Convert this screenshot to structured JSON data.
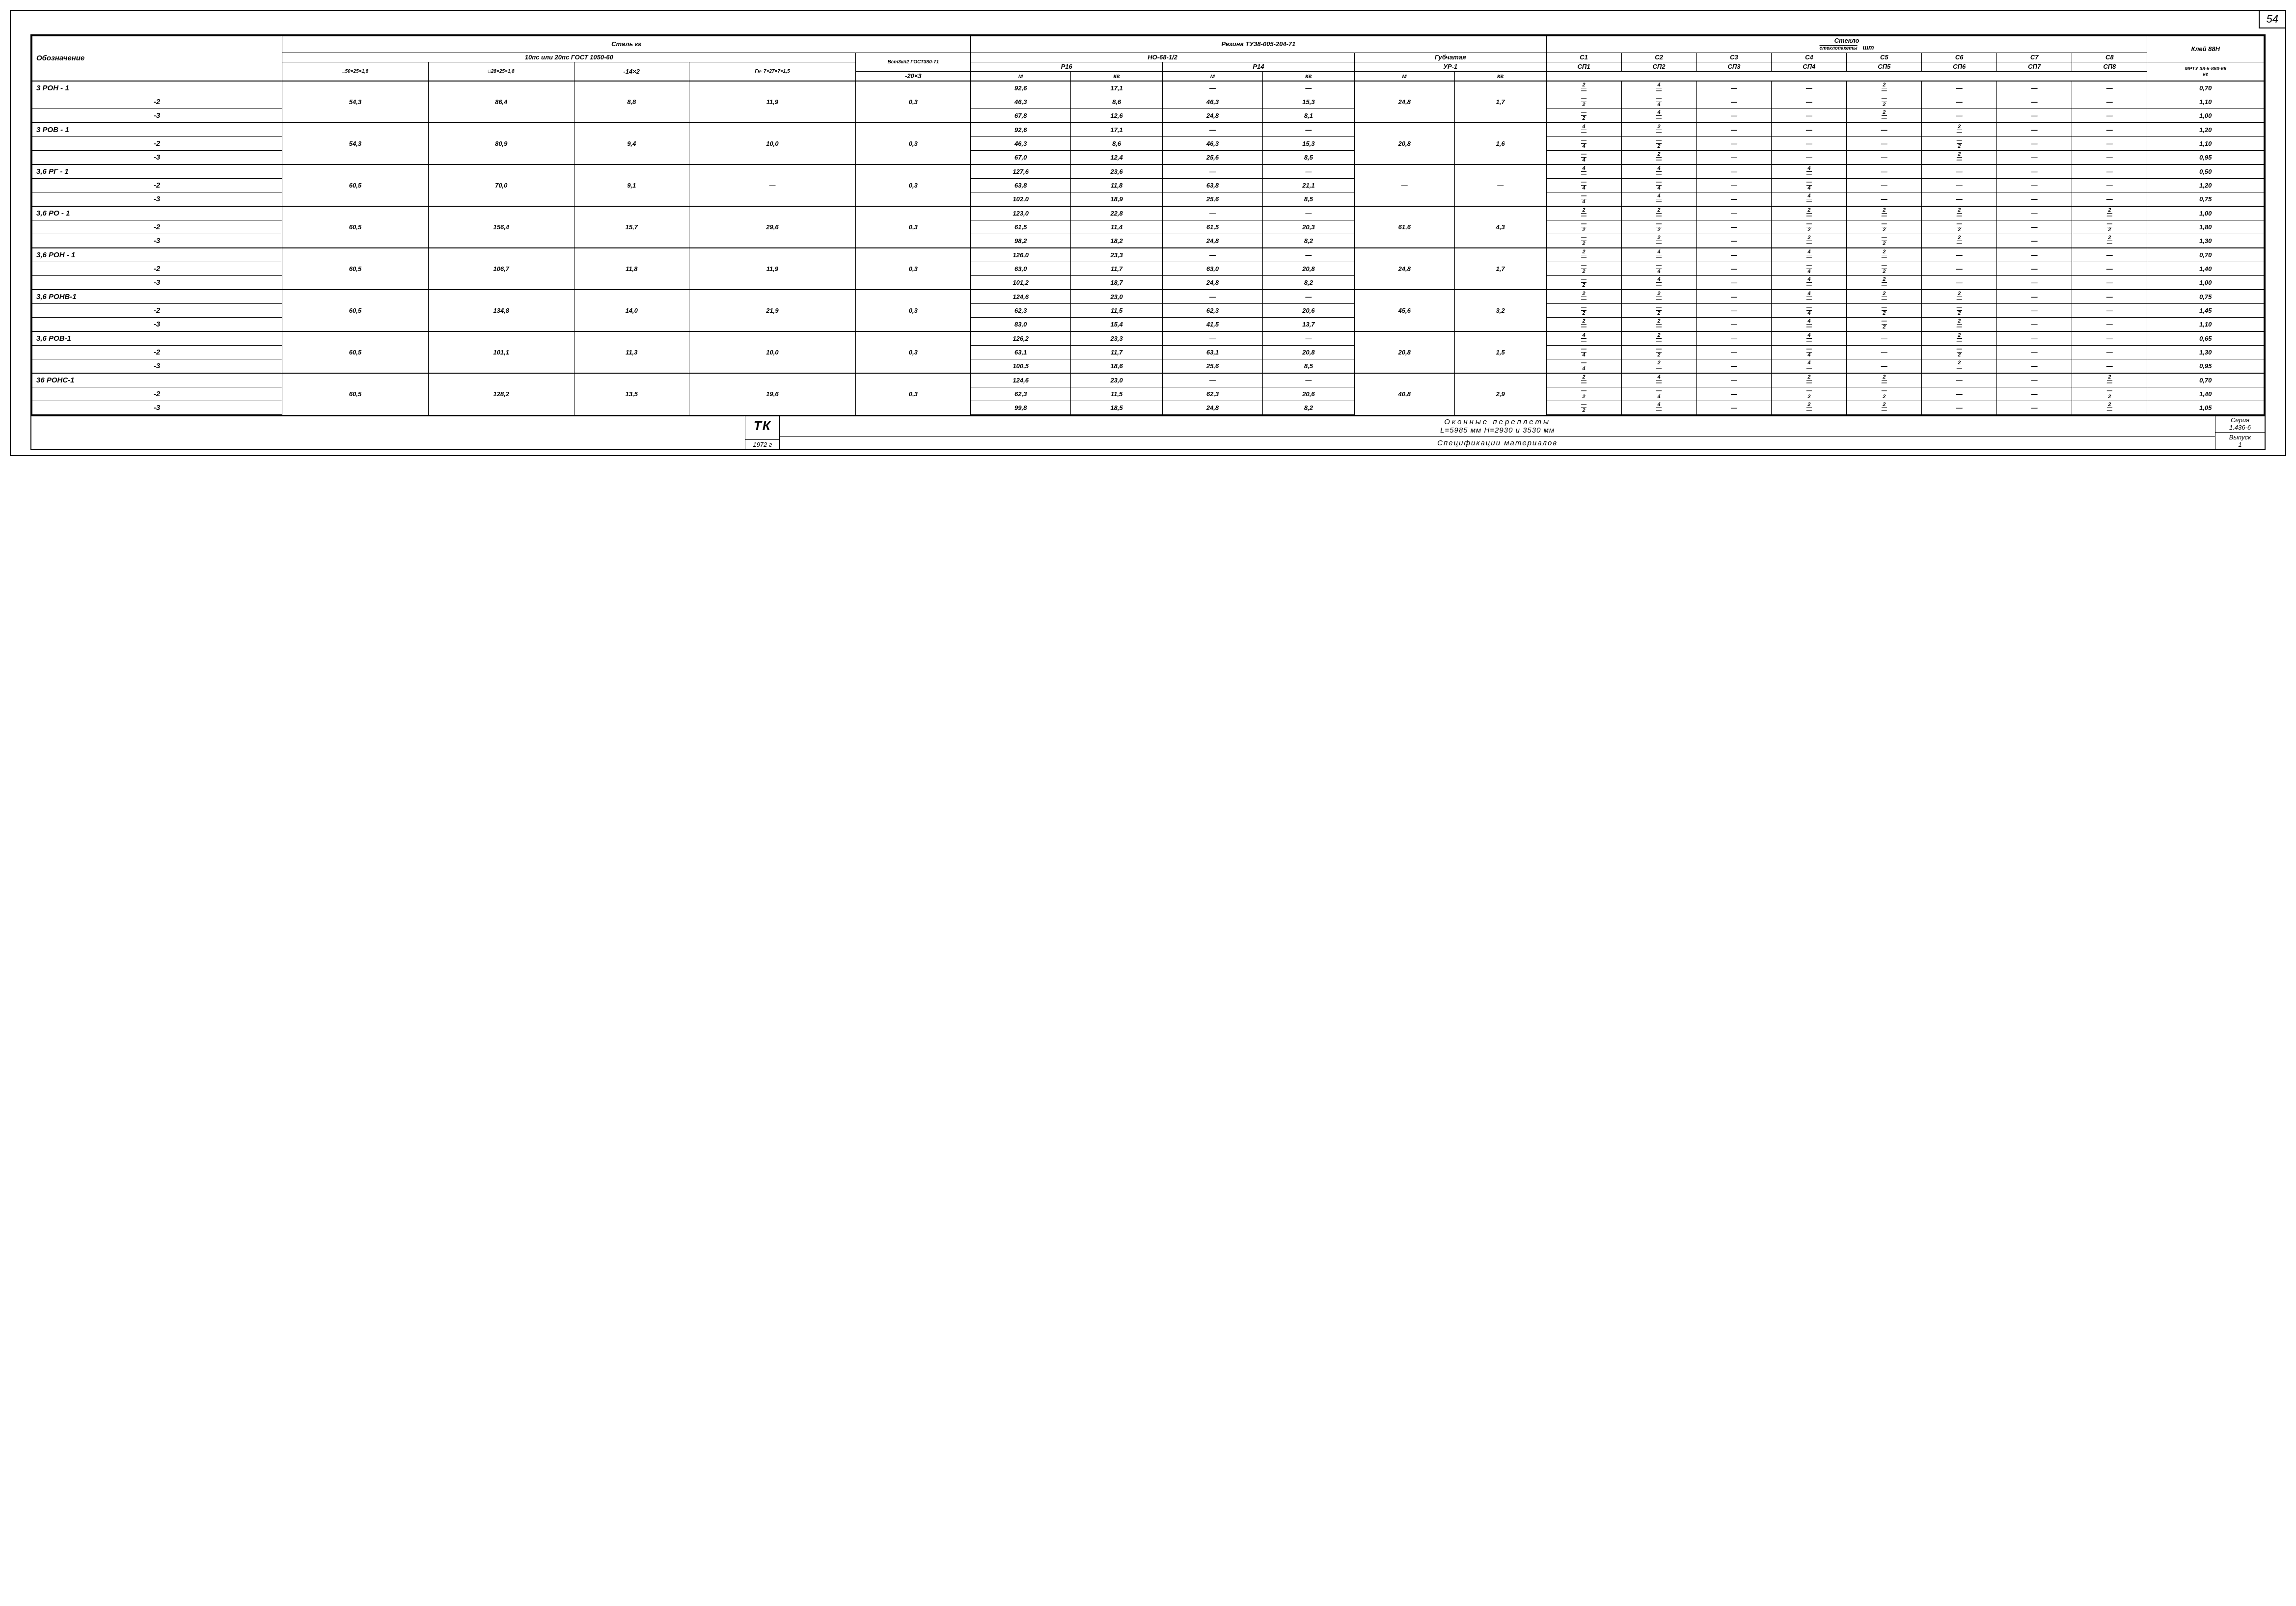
{
  "page_number": "54",
  "headers": {
    "obozn": "Обозначение",
    "steel": "Сталь   кг",
    "steel_sub": "10пс или 20пс ГОСТ 1050-60",
    "steel_extra": "Вст3кп2 ГОСТ380-71",
    "steel_cols": [
      "□50×25×1,8",
      "□28×25×1,8",
      "-14×2",
      "Гн⌐7×27×7×1,5",
      "-20×3"
    ],
    "rubber": "Резина ТУ38-005-204-71",
    "rubber_sub1": "НО-68-1/2",
    "rubber_sub2": "Губчатая",
    "p16": "Р16",
    "p14": "Р14",
    "ur1": "УР-1",
    "m": "м",
    "kg": "кг",
    "glass": "Стекло",
    "glass_sub": "стеклопакеты",
    "sht": "шт",
    "c_top": [
      "С1",
      "С2",
      "С3",
      "С4",
      "С5",
      "С6",
      "С7",
      "С8"
    ],
    "c_bot": [
      "СП1",
      "СП2",
      "СП3",
      "СП4",
      "СП5",
      "СП6",
      "СП7",
      "СП8"
    ],
    "glue": "Клей 88Н",
    "glue_sub": "МРТУ 38-5-880-66",
    "glue_kg": "кг"
  },
  "rows": [
    {
      "label": "3 РОН - 1",
      "s": [
        "",
        "",
        "",
        "",
        ""
      ],
      "r": [
        "92,6",
        "17,1",
        "—",
        "—",
        "",
        ""
      ],
      "c": [
        [
          "2",
          "—"
        ],
        [
          "4",
          "—"
        ],
        [
          "—",
          ""
        ],
        [
          "—",
          ""
        ],
        [
          "2",
          "—"
        ],
        [
          "—",
          ""
        ],
        [
          "—",
          ""
        ],
        [
          "—",
          ""
        ]
      ],
      "g": "0,70"
    },
    {
      "label": "-2",
      "s": [
        "54,3",
        "86,4",
        "8,8",
        "11,9",
        "0,3"
      ],
      "sspan": true,
      "r": [
        "46,3",
        "8,6",
        "46,3",
        "15,3",
        "24,8",
        "1,7"
      ],
      "rspan": true,
      "c": [
        [
          "—",
          "2"
        ],
        [
          "—",
          "4"
        ],
        [
          "—",
          ""
        ],
        [
          "—",
          ""
        ],
        [
          "—",
          "2"
        ],
        [
          "—",
          ""
        ],
        [
          "—",
          ""
        ],
        [
          "—",
          ""
        ]
      ],
      "g": "1,10"
    },
    {
      "label": "-3",
      "s": [
        "",
        "",
        "",
        "",
        ""
      ],
      "r": [
        "67,8",
        "12,6",
        "24,8",
        "8,1",
        "",
        ""
      ],
      "c": [
        [
          "—",
          "2"
        ],
        [
          "4",
          "—"
        ],
        [
          "—",
          ""
        ],
        [
          "—",
          ""
        ],
        [
          "2",
          "—"
        ],
        [
          "—",
          ""
        ],
        [
          "—",
          ""
        ],
        [
          "—",
          ""
        ]
      ],
      "g": "1,00"
    },
    {
      "label": "3 РОВ - 1",
      "s": [
        "",
        "",
        "",
        "",
        ""
      ],
      "r": [
        "92,6",
        "17,1",
        "—",
        "—",
        "",
        ""
      ],
      "c": [
        [
          "4",
          "—"
        ],
        [
          "2",
          "—"
        ],
        [
          "—",
          ""
        ],
        [
          "—",
          ""
        ],
        [
          "—",
          ""
        ],
        [
          "2",
          "—"
        ],
        [
          "—",
          ""
        ],
        [
          "—",
          ""
        ]
      ],
      "g": "1,20"
    },
    {
      "label": "-2",
      "s": [
        "54,3",
        "80,9",
        "9,4",
        "10,0",
        "0,3"
      ],
      "sspan": true,
      "r": [
        "46,3",
        "8,6",
        "46,3",
        "15,3",
        "20,8",
        "1,6"
      ],
      "rspan": true,
      "c": [
        [
          "—",
          "4"
        ],
        [
          "—",
          "2"
        ],
        [
          "—",
          ""
        ],
        [
          "—",
          ""
        ],
        [
          "—",
          ""
        ],
        [
          "—",
          "2"
        ],
        [
          "—",
          ""
        ],
        [
          "—",
          ""
        ]
      ],
      "g": "1,10"
    },
    {
      "label": "-3",
      "s": [
        "",
        "",
        "",
        "",
        ""
      ],
      "r": [
        "67,0",
        "12,4",
        "25,6",
        "8,5",
        "",
        ""
      ],
      "c": [
        [
          "—",
          "4"
        ],
        [
          "2",
          "—"
        ],
        [
          "—",
          ""
        ],
        [
          "—",
          ""
        ],
        [
          "—",
          ""
        ],
        [
          "2",
          "—"
        ],
        [
          "—",
          ""
        ],
        [
          "—",
          ""
        ]
      ],
      "g": "0,95"
    },
    {
      "label": "3,6 РГ - 1",
      "s": [
        "",
        "",
        "",
        "",
        ""
      ],
      "r": [
        "127,6",
        "23,6",
        "—",
        "—",
        "",
        ""
      ],
      "c": [
        [
          "4",
          "—"
        ],
        [
          "4",
          "—"
        ],
        [
          "—",
          ""
        ],
        [
          "4",
          "—"
        ],
        [
          "—",
          ""
        ],
        [
          "—",
          ""
        ],
        [
          "—",
          ""
        ],
        [
          "—",
          ""
        ]
      ],
      "g": "0,50"
    },
    {
      "label": "-2",
      "s": [
        "60,5",
        "70,0",
        "9,1",
        "—",
        "0,3"
      ],
      "sspan": true,
      "r": [
        "63,8",
        "11,8",
        "63,8",
        "21,1",
        "—",
        "—"
      ],
      "rspan": true,
      "c": [
        [
          "—",
          "4"
        ],
        [
          "—",
          "4"
        ],
        [
          "—",
          ""
        ],
        [
          "—",
          "4"
        ],
        [
          "—",
          ""
        ],
        [
          "—",
          ""
        ],
        [
          "—",
          ""
        ],
        [
          "—",
          ""
        ]
      ],
      "g": "1,20"
    },
    {
      "label": "-3",
      "s": [
        "",
        "",
        "",
        "",
        ""
      ],
      "r": [
        "102,0",
        "18,9",
        "25,6",
        "8,5",
        "",
        ""
      ],
      "c": [
        [
          "—",
          "4"
        ],
        [
          "4",
          "—"
        ],
        [
          "—",
          ""
        ],
        [
          "4",
          "—"
        ],
        [
          "—",
          ""
        ],
        [
          "—",
          ""
        ],
        [
          "—",
          ""
        ],
        [
          "—",
          ""
        ]
      ],
      "g": "0,75"
    },
    {
      "label": "3,6 РО - 1",
      "s": [
        "",
        "",
        "",
        "",
        ""
      ],
      "r": [
        "123,0",
        "22,8",
        "—",
        "—",
        "",
        ""
      ],
      "c": [
        [
          "2",
          "—"
        ],
        [
          "2",
          "—"
        ],
        [
          "—",
          ""
        ],
        [
          "2",
          "—"
        ],
        [
          "2",
          "—"
        ],
        [
          "2",
          "—"
        ],
        [
          "—",
          ""
        ],
        [
          "2",
          "—"
        ]
      ],
      "g": "1,00"
    },
    {
      "label": "-2",
      "s": [
        "60,5",
        "156,4",
        "15,7",
        "29,6",
        "0,3"
      ],
      "sspan": true,
      "r": [
        "61,5",
        "11,4",
        "61,5",
        "20,3",
        "61,6",
        "4,3"
      ],
      "rspan": true,
      "c": [
        [
          "—",
          "2"
        ],
        [
          "—",
          "2"
        ],
        [
          "—",
          ""
        ],
        [
          "—",
          "2"
        ],
        [
          "—",
          "2"
        ],
        [
          "—",
          "2"
        ],
        [
          "—",
          ""
        ],
        [
          "—",
          "2"
        ]
      ],
      "g": "1,80"
    },
    {
      "label": "-3",
      "s": [
        "",
        "",
        "",
        "",
        ""
      ],
      "r": [
        "98,2",
        "18,2",
        "24,8",
        "8,2",
        "",
        ""
      ],
      "c": [
        [
          "—",
          "2"
        ],
        [
          "2",
          "—"
        ],
        [
          "—",
          ""
        ],
        [
          "2",
          "—"
        ],
        [
          "—",
          "2"
        ],
        [
          "2",
          "—"
        ],
        [
          "—",
          ""
        ],
        [
          "2",
          "—"
        ]
      ],
      "g": "1,30"
    },
    {
      "label": "3,6 РОН - 1",
      "s": [
        "",
        "",
        "",
        "",
        ""
      ],
      "r": [
        "126,0",
        "23,3",
        "—",
        "—",
        "",
        ""
      ],
      "c": [
        [
          "2",
          "—"
        ],
        [
          "4",
          "—"
        ],
        [
          "—",
          ""
        ],
        [
          "4",
          "—"
        ],
        [
          "2",
          "—"
        ],
        [
          "—",
          ""
        ],
        [
          "—",
          ""
        ],
        [
          "—",
          ""
        ]
      ],
      "g": "0,70"
    },
    {
      "label": "-2",
      "s": [
        "60,5",
        "106,7",
        "11,8",
        "11,9",
        "0,3"
      ],
      "sspan": true,
      "r": [
        "63,0",
        "11,7",
        "63,0",
        "20,8",
        "24,8",
        "1,7"
      ],
      "rspan": true,
      "c": [
        [
          "—",
          "2"
        ],
        [
          "—",
          "4"
        ],
        [
          "—",
          ""
        ],
        [
          "—",
          "4"
        ],
        [
          "—",
          "2"
        ],
        [
          "—",
          ""
        ],
        [
          "—",
          ""
        ],
        [
          "—",
          ""
        ]
      ],
      "g": "1,40"
    },
    {
      "label": "-3",
      "s": [
        "",
        "",
        "",
        "",
        ""
      ],
      "r": [
        "101,2",
        "18,7",
        "24,8",
        "8,2",
        "",
        ""
      ],
      "c": [
        [
          "—",
          "2"
        ],
        [
          "4",
          "—"
        ],
        [
          "—",
          ""
        ],
        [
          "4",
          "—"
        ],
        [
          "2",
          "—"
        ],
        [
          "—",
          ""
        ],
        [
          "—",
          ""
        ],
        [
          "—",
          ""
        ]
      ],
      "g": "1,00"
    },
    {
      "label": "3,6 РОНВ-1",
      "s": [
        "",
        "",
        "",
        "",
        ""
      ],
      "r": [
        "124,6",
        "23,0",
        "—",
        "—",
        "",
        ""
      ],
      "c": [
        [
          "2",
          "—"
        ],
        [
          "2",
          "—"
        ],
        [
          "—",
          ""
        ],
        [
          "4",
          "—"
        ],
        [
          "2",
          "—"
        ],
        [
          "2",
          "—"
        ],
        [
          "—",
          ""
        ],
        [
          "—",
          ""
        ]
      ],
      "g": "0,75"
    },
    {
      "label": "-2",
      "s": [
        "60,5",
        "134,8",
        "14,0",
        "21,9",
        "0,3"
      ],
      "sspan": true,
      "r": [
        "62,3",
        "11,5",
        "62,3",
        "20,6",
        "45,6",
        "3,2"
      ],
      "rspan": true,
      "c": [
        [
          "—",
          "2"
        ],
        [
          "—",
          "2"
        ],
        [
          "—",
          ""
        ],
        [
          "—",
          "4"
        ],
        [
          "—",
          "2"
        ],
        [
          "—",
          "2"
        ],
        [
          "—",
          ""
        ],
        [
          "—",
          ""
        ]
      ],
      "g": "1,45"
    },
    {
      "label": "-3",
      "s": [
        "",
        "",
        "",
        "",
        ""
      ],
      "r": [
        "83,0",
        "15,4",
        "41,5",
        "13,7",
        "",
        ""
      ],
      "c": [
        [
          "2",
          "—"
        ],
        [
          "2",
          "—"
        ],
        [
          "—",
          ""
        ],
        [
          "4",
          "—"
        ],
        [
          "—",
          "2"
        ],
        [
          "2",
          "—"
        ],
        [
          "—",
          ""
        ],
        [
          "—",
          ""
        ]
      ],
      "g": "1,10"
    },
    {
      "label": "3,6 РОВ-1",
      "s": [
        "",
        "",
        "",
        "",
        ""
      ],
      "r": [
        "126,2",
        "23,3",
        "—",
        "—",
        "",
        ""
      ],
      "c": [
        [
          "4",
          "—"
        ],
        [
          "2",
          "—"
        ],
        [
          "—",
          ""
        ],
        [
          "4",
          "—"
        ],
        [
          "—",
          ""
        ],
        [
          "2",
          "—"
        ],
        [
          "—",
          ""
        ],
        [
          "—",
          ""
        ]
      ],
      "g": "0,65"
    },
    {
      "label": "-2",
      "s": [
        "60,5",
        "101,1",
        "11,3",
        "10,0",
        "0,3"
      ],
      "sspan": true,
      "r": [
        "63,1",
        "11,7",
        "63,1",
        "20,8",
        "20,8",
        "1,5"
      ],
      "rspan": true,
      "c": [
        [
          "—",
          "4"
        ],
        [
          "—",
          "2"
        ],
        [
          "—",
          ""
        ],
        [
          "—",
          "4"
        ],
        [
          "—",
          ""
        ],
        [
          "—",
          "2"
        ],
        [
          "—",
          ""
        ],
        [
          "—",
          ""
        ]
      ],
      "g": "1,30"
    },
    {
      "label": "-3",
      "s": [
        "",
        "",
        "",
        "",
        ""
      ],
      "r": [
        "100,5",
        "18,6",
        "25,6",
        "8,5",
        "",
        ""
      ],
      "c": [
        [
          "—",
          "4"
        ],
        [
          "2",
          "—"
        ],
        [
          "—",
          ""
        ],
        [
          "4",
          "—"
        ],
        [
          "—",
          ""
        ],
        [
          "2",
          "—"
        ],
        [
          "—",
          ""
        ],
        [
          "—",
          ""
        ]
      ],
      "g": "0,95"
    },
    {
      "label": "36 РОНС-1",
      "s": [
        "",
        "",
        "",
        "",
        ""
      ],
      "r": [
        "124,6",
        "23,0",
        "—",
        "—",
        "",
        ""
      ],
      "c": [
        [
          "2",
          "—"
        ],
        [
          "4",
          "—"
        ],
        [
          "—",
          ""
        ],
        [
          "2",
          "—"
        ],
        [
          "2",
          "—"
        ],
        [
          "—",
          ""
        ],
        [
          "—",
          ""
        ],
        [
          "2",
          "—"
        ]
      ],
      "g": "0,70"
    },
    {
      "label": "-2",
      "s": [
        "60,5",
        "128,2",
        "13,5",
        "19,6",
        "0,3"
      ],
      "sspan": true,
      "r": [
        "62,3",
        "11,5",
        "62,3",
        "20,6",
        "40,8",
        "2,9"
      ],
      "rspan": true,
      "c": [
        [
          "—",
          "2"
        ],
        [
          "—",
          "4"
        ],
        [
          "—",
          ""
        ],
        [
          "—",
          "2"
        ],
        [
          "—",
          "2"
        ],
        [
          "—",
          ""
        ],
        [
          "—",
          ""
        ],
        [
          "—",
          "2"
        ]
      ],
      "g": "1,40"
    },
    {
      "label": "-3",
      "s": [
        "",
        "",
        "",
        "",
        ""
      ],
      "r": [
        "99,8",
        "18,5",
        "24,8",
        "8,2",
        "",
        ""
      ],
      "c": [
        [
          "—",
          "2"
        ],
        [
          "4",
          "—"
        ],
        [
          "—",
          ""
        ],
        [
          "2",
          "—"
        ],
        [
          "2",
          "—"
        ],
        [
          "—",
          ""
        ],
        [
          "—",
          ""
        ],
        [
          "2",
          "—"
        ]
      ],
      "g": "1,05"
    }
  ],
  "title_block": {
    "tk": "ТК",
    "year": "1972 г",
    "title1": "Оконные  переплеты",
    "title2": "L=5985 мм   H=2930 и 3530 мм",
    "title3": "Спецификации материалов",
    "series_lbl": "Серия",
    "series": "1.436-6",
    "issue_lbl": "Выпуск",
    "issue": "1"
  },
  "style": {
    "font": "italic handwritten",
    "border_color": "#000000",
    "bg": "#ffffff"
  }
}
